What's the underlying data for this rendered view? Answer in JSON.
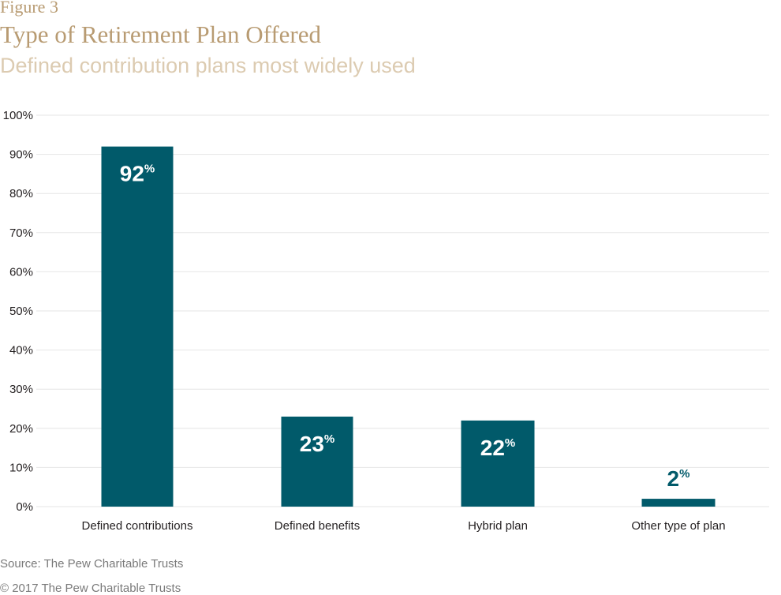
{
  "header": {
    "figure_label": "Figure 3",
    "title": "Type of Retirement Plan Offered",
    "subtitle": "Defined contribution plans most widely used"
  },
  "footer": {
    "source": "Source: The Pew Charitable Trusts",
    "copyright": "© 2017 The Pew Charitable Trusts"
  },
  "colors": {
    "bar": "#015a6a",
    "title": "#b89b72",
    "subtitle": "#dccbb1",
    "grid": "#e6e6e6"
  },
  "chart_data": {
    "type": "bar",
    "title": "Type of Retirement Plan Offered",
    "subtitle": "Defined contribution plans most widely used",
    "categories": [
      "Defined contributions",
      "Defined benefits",
      "Hybrid plan",
      "Other type of plan"
    ],
    "values": [
      92,
      23,
      22,
      2
    ],
    "value_labels": [
      "92",
      "23",
      "22",
      "2"
    ],
    "value_suffix": "%",
    "y_ticks": [
      "0%",
      "10%",
      "20%",
      "30%",
      "40%",
      "50%",
      "60%",
      "70%",
      "80%",
      "90%",
      "100%"
    ],
    "ylim": [
      0,
      100
    ],
    "grid": true,
    "legend": "none"
  }
}
